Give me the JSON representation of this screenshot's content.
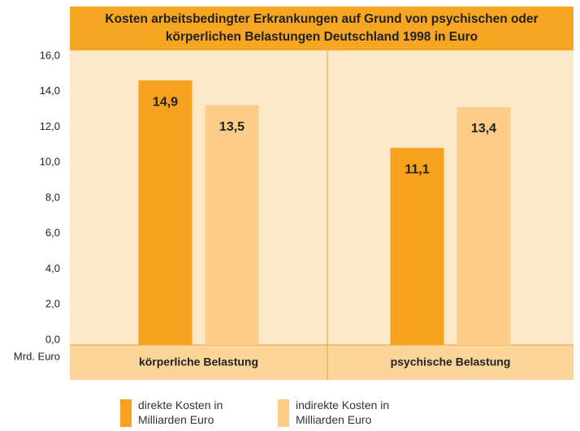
{
  "chart_data": {
    "type": "bar",
    "title": "Kosten arbeitsbedingter Erkrankungen auf Grund von psychischen oder körperlichen Belastungen Deutschland 1998 in Euro",
    "y_axis_label": "Mrd. Euro",
    "categories": [
      "körperliche Belastung",
      "psychische Belastung"
    ],
    "series": [
      {
        "name": "direkte Kosten in Milliarden Euro",
        "color": "#f6a21e",
        "values": [
          14.9,
          11.1
        ],
        "value_labels": [
          "14,9",
          "11,1"
        ]
      },
      {
        "name": "indirekte Kosten in Milliarden Euro",
        "color": "#fbcd88",
        "values": [
          13.5,
          13.4
        ],
        "value_labels": [
          "13,5",
          "13,4"
        ]
      }
    ],
    "ylim": [
      0,
      16
    ],
    "yticks": [
      {
        "value": 0,
        "label": "0,0"
      },
      {
        "value": 2,
        "label": "2,0"
      },
      {
        "value": 4,
        "label": "4,0"
      },
      {
        "value": 6,
        "label": "6,0"
      },
      {
        "value": 8,
        "label": "8,0"
      },
      {
        "value": 10,
        "label": "10,0"
      },
      {
        "value": 12,
        "label": "12,0"
      },
      {
        "value": 14,
        "label": "14,0"
      },
      {
        "value": 16,
        "label": "16,0"
      }
    ]
  }
}
